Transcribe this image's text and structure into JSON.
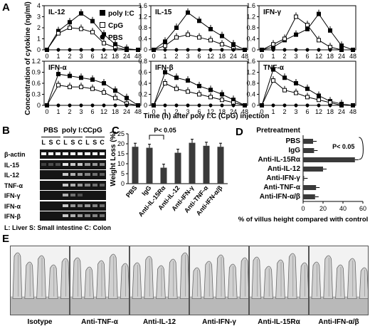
{
  "panel_letters": {
    "a": "A",
    "b": "B",
    "c": "C",
    "d": "D",
    "e": "E"
  },
  "panel_a": {
    "y_axis_label": "Concentration of cytokine (ng/ml)",
    "x_axis_label": "Time (h) after poly I:C (CpG) injection",
    "x_ticks": [
      "0",
      "1",
      "2",
      "3",
      "6",
      "12",
      "18",
      "24",
      "48"
    ],
    "legend": [
      {
        "label": "poly I:C",
        "marker": "filled-square"
      },
      {
        "label": "CpG",
        "marker": "open-square"
      },
      {
        "label": "PBS",
        "marker": "filled-circle"
      }
    ]
  },
  "panel_b": {
    "groups": [
      "PBS",
      "poly I:C",
      "CpG"
    ],
    "lanes": [
      "L",
      "S",
      "C",
      "L",
      "S",
      "C",
      "L",
      "S",
      "C"
    ],
    "rows": [
      "β-actin",
      "IL-15",
      "IL-12",
      "TNF-α",
      "IFN-γ",
      "IFN-α",
      "IFN-β"
    ],
    "band_intensity": [
      [
        1,
        1,
        1,
        1,
        1,
        1,
        1,
        1,
        1
      ],
      [
        0.1,
        0.2,
        0.2,
        0.9,
        0.8,
        0.8,
        0.6,
        0.6,
        0.5
      ],
      [
        0,
        0,
        0,
        0.8,
        0.7,
        0.6,
        0.5,
        0.4,
        0.3
      ],
      [
        0,
        0,
        0,
        0.8,
        0.7,
        0.6,
        0.5,
        0.4,
        0.3
      ],
      [
        0,
        0,
        0,
        0.7,
        0.4,
        0.2,
        0,
        0,
        0
      ],
      [
        0,
        0,
        0,
        0.8,
        0.6,
        0.5,
        0.6,
        0.5,
        0.4
      ],
      [
        0,
        0,
        0,
        0.8,
        0.7,
        0.6,
        0.5,
        0.5,
        0.4
      ]
    ],
    "footnote": "L: Liver S: Small intestine C: Colon"
  },
  "panel_e": {
    "captions": [
      "Isotype",
      "Anti-TNF-α",
      "Anti-IL-12",
      "Anti-IFN-γ",
      "Anti-IL-15Rα",
      "Anti-IFN-α/β"
    ]
  },
  "chart_data": [
    {
      "type": "line",
      "title": "IL-12",
      "x": [
        "0",
        "1",
        "2",
        "3",
        "6",
        "12",
        "18",
        "24",
        "48"
      ],
      "ylim": [
        0,
        4
      ],
      "yticks": [
        0,
        1,
        2,
        3,
        4
      ],
      "series": [
        {
          "name": "poly I:C",
          "values": [
            0,
            1.7,
            2.5,
            3.3,
            2.6,
            1.4,
            0.5,
            0.1,
            0
          ]
        },
        {
          "name": "CpG",
          "values": [
            0,
            1.5,
            2,
            1.9,
            1.6,
            0.6,
            0.2,
            0,
            0
          ]
        },
        {
          "name": "PBS",
          "values": [
            0,
            0,
            0,
            0,
            0,
            0,
            0,
            0,
            0
          ]
        }
      ]
    },
    {
      "type": "line",
      "title": "IL-15",
      "x": [
        "0",
        "1",
        "2",
        "3",
        "6",
        "12",
        "18",
        "24",
        "48"
      ],
      "ylim": [
        0,
        1.6
      ],
      "yticks": [
        0,
        0.4,
        0.8,
        1.2,
        1.6
      ],
      "series": [
        {
          "name": "poly I:C",
          "values": [
            0,
            0.3,
            0.8,
            1.35,
            1.05,
            0.75,
            0.5,
            0.2,
            0
          ]
        },
        {
          "name": "CpG",
          "values": [
            0,
            0.15,
            0.45,
            0.55,
            0.45,
            0.35,
            0.2,
            0.05,
            0
          ]
        },
        {
          "name": "PBS",
          "values": [
            0,
            0,
            0,
            0,
            0,
            0,
            0,
            0,
            0
          ]
        }
      ]
    },
    {
      "type": "line",
      "title": "IFN-γ",
      "x": [
        "0",
        "1",
        "2",
        "3",
        "6",
        "12",
        "18",
        "24",
        "48"
      ],
      "ylim": [
        0,
        1.6
      ],
      "yticks": [
        0,
        0.4,
        0.8,
        1.2,
        1.6
      ],
      "series": [
        {
          "name": "poly I:C",
          "values": [
            0,
            0.1,
            0.35,
            0.55,
            0.75,
            1.3,
            0.7,
            0.15,
            0
          ]
        },
        {
          "name": "CpG",
          "values": [
            0,
            0.2,
            0.4,
            1.2,
            0.9,
            0.35,
            0.1,
            0,
            0
          ]
        },
        {
          "name": "PBS",
          "values": [
            0,
            0,
            0,
            0,
            0,
            0,
            0,
            0,
            0
          ]
        }
      ]
    },
    {
      "type": "line",
      "title": "IFN-α",
      "x": [
        "0",
        "1",
        "2",
        "3",
        "6",
        "12",
        "18",
        "24",
        "48"
      ],
      "ylim": [
        0,
        1.2
      ],
      "yticks": [
        0,
        0.3,
        0.6,
        0.9,
        1.2
      ],
      "series": [
        {
          "name": "poly I:C",
          "values": [
            0,
            0.85,
            0.8,
            0.75,
            0.7,
            0.6,
            0.4,
            0.2,
            0
          ]
        },
        {
          "name": "CpG",
          "values": [
            0,
            0.55,
            0.5,
            0.5,
            0.45,
            0.35,
            0.2,
            0.05,
            0
          ]
        },
        {
          "name": "PBS",
          "values": [
            0,
            0,
            0,
            0,
            0,
            0,
            0,
            0,
            0
          ]
        }
      ]
    },
    {
      "type": "line",
      "title": "IFN-β",
      "x": [
        "0",
        "1",
        "2",
        "3",
        "6",
        "12",
        "18",
        "24",
        "48"
      ],
      "ylim": [
        0,
        0.8
      ],
      "yticks": [
        0,
        0.2,
        0.4,
        0.6,
        0.8
      ],
      "series": [
        {
          "name": "poly I:C",
          "values": [
            0,
            0.6,
            0.5,
            0.45,
            0.35,
            0.28,
            0.2,
            0.1,
            0
          ]
        },
        {
          "name": "CpG",
          "values": [
            0,
            0.4,
            0.3,
            0.25,
            0.2,
            0.15,
            0.1,
            0.05,
            0
          ]
        },
        {
          "name": "PBS",
          "values": [
            0,
            0,
            0,
            0,
            0,
            0,
            0,
            0,
            0
          ]
        }
      ]
    },
    {
      "type": "line",
      "title": "TNF-α",
      "x": [
        "0",
        "1",
        "2",
        "3",
        "6",
        "12",
        "18",
        "24",
        "48"
      ],
      "ylim": [
        0,
        1.6
      ],
      "yticks": [
        0,
        0.4,
        0.8,
        1.2,
        1.6
      ],
      "series": [
        {
          "name": "poly I:C",
          "values": [
            0,
            1.3,
            1.0,
            0.8,
            0.6,
            0.35,
            0.15,
            0.05,
            0
          ]
        },
        {
          "name": "CpG",
          "values": [
            0,
            0.9,
            0.55,
            0.45,
            0.3,
            0.2,
            0.1,
            0,
            0
          ]
        },
        {
          "name": "PBS",
          "values": [
            0,
            0,
            0,
            0,
            0,
            0,
            0,
            0,
            0
          ]
        }
      ]
    },
    {
      "type": "bar",
      "categories": [
        "PBS",
        "IgG",
        "Anti-IL-15Rα",
        "Anti-IL-12",
        "Anti-IFN-γ",
        "Anti-TNF-α",
        "Anti-IFN-α/β"
      ],
      "values": [
        18.5,
        18,
        8,
        15.5,
        20.5,
        19,
        18.5
      ],
      "ylabel": "Weight Loss (%)",
      "ylim": [
        0,
        25
      ],
      "yticks": [
        0,
        5,
        10,
        15,
        20,
        25
      ],
      "annotation": "P< 0.05"
    },
    {
      "type": "bar",
      "orientation": "horizontal",
      "header": "Pretreatment",
      "categories": [
        "PBS",
        "IgG",
        "Anti-IL-15Rα",
        "Anti-IL-12",
        "Anti-IFN-γ",
        "Anti-TNF-α",
        "Anti-IFN-α/β"
      ],
      "values": [
        10,
        11,
        52,
        20,
        1,
        13,
        12
      ],
      "xlabel": "% of villus height compared with control",
      "xlim": [
        0,
        60
      ],
      "xticks": [
        0,
        20,
        40,
        60
      ],
      "annotation": "P< 0.05"
    }
  ]
}
